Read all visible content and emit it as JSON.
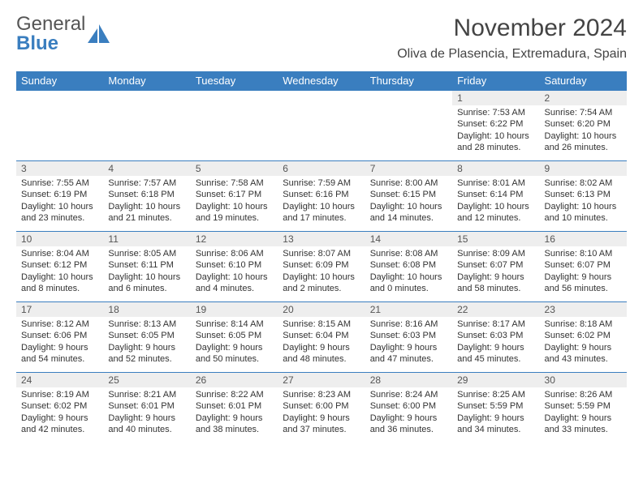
{
  "brand": {
    "word1": "General",
    "word2": "Blue"
  },
  "title": "November 2024",
  "location": "Oliva de Plasencia, Extremadura, Spain",
  "colors": {
    "header_bg": "#3a7ebf",
    "header_fg": "#ffffff",
    "daynum_bg": "#eeeeee",
    "border": "#3a7ebf",
    "text": "#333333",
    "logo_gray": "#555555",
    "logo_blue": "#3a7ebf",
    "background": "#ffffff"
  },
  "font": {
    "family": "Arial",
    "title_size_pt": 22,
    "location_size_pt": 12,
    "header_size_pt": 10,
    "body_size_pt": 8
  },
  "day_headers": [
    "Sunday",
    "Monday",
    "Tuesday",
    "Wednesday",
    "Thursday",
    "Friday",
    "Saturday"
  ],
  "weeks": [
    [
      null,
      null,
      null,
      null,
      null,
      {
        "n": "1",
        "sunrise": "Sunrise: 7:53 AM",
        "sunset": "Sunset: 6:22 PM",
        "daylight": "Daylight: 10 hours and 28 minutes."
      },
      {
        "n": "2",
        "sunrise": "Sunrise: 7:54 AM",
        "sunset": "Sunset: 6:20 PM",
        "daylight": "Daylight: 10 hours and 26 minutes."
      }
    ],
    [
      {
        "n": "3",
        "sunrise": "Sunrise: 7:55 AM",
        "sunset": "Sunset: 6:19 PM",
        "daylight": "Daylight: 10 hours and 23 minutes."
      },
      {
        "n": "4",
        "sunrise": "Sunrise: 7:57 AM",
        "sunset": "Sunset: 6:18 PM",
        "daylight": "Daylight: 10 hours and 21 minutes."
      },
      {
        "n": "5",
        "sunrise": "Sunrise: 7:58 AM",
        "sunset": "Sunset: 6:17 PM",
        "daylight": "Daylight: 10 hours and 19 minutes."
      },
      {
        "n": "6",
        "sunrise": "Sunrise: 7:59 AM",
        "sunset": "Sunset: 6:16 PM",
        "daylight": "Daylight: 10 hours and 17 minutes."
      },
      {
        "n": "7",
        "sunrise": "Sunrise: 8:00 AM",
        "sunset": "Sunset: 6:15 PM",
        "daylight": "Daylight: 10 hours and 14 minutes."
      },
      {
        "n": "8",
        "sunrise": "Sunrise: 8:01 AM",
        "sunset": "Sunset: 6:14 PM",
        "daylight": "Daylight: 10 hours and 12 minutes."
      },
      {
        "n": "9",
        "sunrise": "Sunrise: 8:02 AM",
        "sunset": "Sunset: 6:13 PM",
        "daylight": "Daylight: 10 hours and 10 minutes."
      }
    ],
    [
      {
        "n": "10",
        "sunrise": "Sunrise: 8:04 AM",
        "sunset": "Sunset: 6:12 PM",
        "daylight": "Daylight: 10 hours and 8 minutes."
      },
      {
        "n": "11",
        "sunrise": "Sunrise: 8:05 AM",
        "sunset": "Sunset: 6:11 PM",
        "daylight": "Daylight: 10 hours and 6 minutes."
      },
      {
        "n": "12",
        "sunrise": "Sunrise: 8:06 AM",
        "sunset": "Sunset: 6:10 PM",
        "daylight": "Daylight: 10 hours and 4 minutes."
      },
      {
        "n": "13",
        "sunrise": "Sunrise: 8:07 AM",
        "sunset": "Sunset: 6:09 PM",
        "daylight": "Daylight: 10 hours and 2 minutes."
      },
      {
        "n": "14",
        "sunrise": "Sunrise: 8:08 AM",
        "sunset": "Sunset: 6:08 PM",
        "daylight": "Daylight: 10 hours and 0 minutes."
      },
      {
        "n": "15",
        "sunrise": "Sunrise: 8:09 AM",
        "sunset": "Sunset: 6:07 PM",
        "daylight": "Daylight: 9 hours and 58 minutes."
      },
      {
        "n": "16",
        "sunrise": "Sunrise: 8:10 AM",
        "sunset": "Sunset: 6:07 PM",
        "daylight": "Daylight: 9 hours and 56 minutes."
      }
    ],
    [
      {
        "n": "17",
        "sunrise": "Sunrise: 8:12 AM",
        "sunset": "Sunset: 6:06 PM",
        "daylight": "Daylight: 9 hours and 54 minutes."
      },
      {
        "n": "18",
        "sunrise": "Sunrise: 8:13 AM",
        "sunset": "Sunset: 6:05 PM",
        "daylight": "Daylight: 9 hours and 52 minutes."
      },
      {
        "n": "19",
        "sunrise": "Sunrise: 8:14 AM",
        "sunset": "Sunset: 6:05 PM",
        "daylight": "Daylight: 9 hours and 50 minutes."
      },
      {
        "n": "20",
        "sunrise": "Sunrise: 8:15 AM",
        "sunset": "Sunset: 6:04 PM",
        "daylight": "Daylight: 9 hours and 48 minutes."
      },
      {
        "n": "21",
        "sunrise": "Sunrise: 8:16 AM",
        "sunset": "Sunset: 6:03 PM",
        "daylight": "Daylight: 9 hours and 47 minutes."
      },
      {
        "n": "22",
        "sunrise": "Sunrise: 8:17 AM",
        "sunset": "Sunset: 6:03 PM",
        "daylight": "Daylight: 9 hours and 45 minutes."
      },
      {
        "n": "23",
        "sunrise": "Sunrise: 8:18 AM",
        "sunset": "Sunset: 6:02 PM",
        "daylight": "Daylight: 9 hours and 43 minutes."
      }
    ],
    [
      {
        "n": "24",
        "sunrise": "Sunrise: 8:19 AM",
        "sunset": "Sunset: 6:02 PM",
        "daylight": "Daylight: 9 hours and 42 minutes."
      },
      {
        "n": "25",
        "sunrise": "Sunrise: 8:21 AM",
        "sunset": "Sunset: 6:01 PM",
        "daylight": "Daylight: 9 hours and 40 minutes."
      },
      {
        "n": "26",
        "sunrise": "Sunrise: 8:22 AM",
        "sunset": "Sunset: 6:01 PM",
        "daylight": "Daylight: 9 hours and 38 minutes."
      },
      {
        "n": "27",
        "sunrise": "Sunrise: 8:23 AM",
        "sunset": "Sunset: 6:00 PM",
        "daylight": "Daylight: 9 hours and 37 minutes."
      },
      {
        "n": "28",
        "sunrise": "Sunrise: 8:24 AM",
        "sunset": "Sunset: 6:00 PM",
        "daylight": "Daylight: 9 hours and 36 minutes."
      },
      {
        "n": "29",
        "sunrise": "Sunrise: 8:25 AM",
        "sunset": "Sunset: 5:59 PM",
        "daylight": "Daylight: 9 hours and 34 minutes."
      },
      {
        "n": "30",
        "sunrise": "Sunrise: 8:26 AM",
        "sunset": "Sunset: 5:59 PM",
        "daylight": "Daylight: 9 hours and 33 minutes."
      }
    ]
  ]
}
